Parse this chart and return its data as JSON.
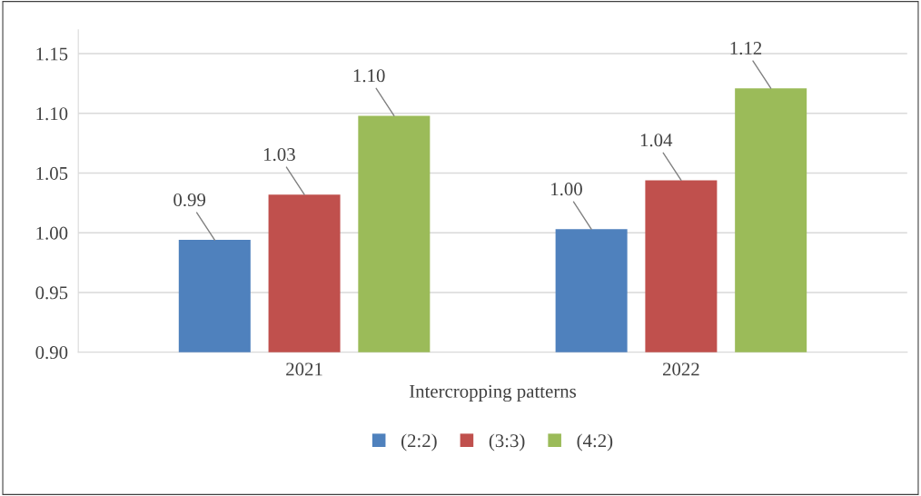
{
  "chart_data": {
    "type": "bar",
    "xlabel": "Intercropping patterns",
    "categories": [
      "2021",
      "2022"
    ],
    "series": [
      {
        "name": "(2:2)",
        "color": "#4f81bd",
        "values": [
          0.994,
          1.003
        ],
        "value_labels": [
          "0.99",
          "1.00"
        ]
      },
      {
        "name": "(3:3)",
        "color": "#c0504d",
        "values": [
          1.032,
          1.044
        ],
        "value_labels": [
          "1.03",
          "1.04"
        ]
      },
      {
        "name": "(4:2)",
        "color": "#9bbb59",
        "values": [
          1.098,
          1.121
        ],
        "value_labels": [
          "1.10",
          "1.12"
        ]
      }
    ],
    "ylim": [
      0.9,
      1.17
    ],
    "yticks": [
      "0.90",
      "0.95",
      "1.00",
      "1.05",
      "1.10",
      "1.15"
    ],
    "grid": "y",
    "legend": "bottom"
  }
}
